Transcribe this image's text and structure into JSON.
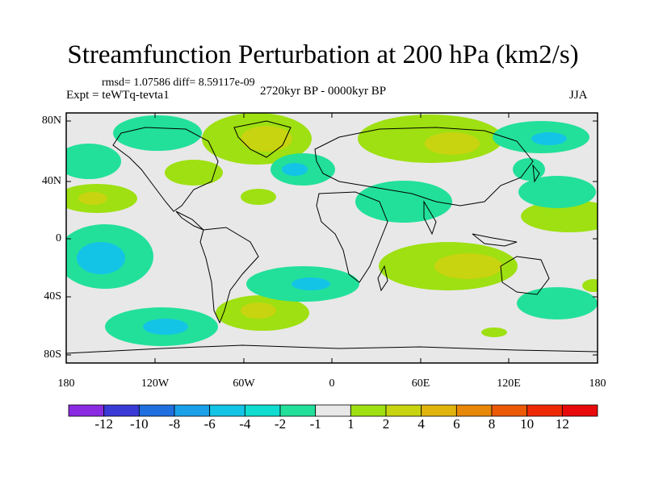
{
  "title": "Streamfunction Perturbation at 200 hPa (km2/s)",
  "stats": "rmsd= 1.07586 diff= 8.59117e-09",
  "experiment": "Expt = teWTq-tevta1",
  "period": "2720kyr BP - 0000kyr BP",
  "season": "JJA",
  "lat_labels": [
    "80N",
    "40N",
    "0",
    "40S",
    "80S"
  ],
  "lon_labels": [
    "180",
    "120W",
    "60W",
    "0",
    "60E",
    "120E",
    "180"
  ],
  "colorbar": {
    "labels": [
      "-12",
      "-10",
      "-8",
      "-6",
      "-4",
      "-2",
      "-1",
      "1",
      "2",
      "4",
      "6",
      "8",
      "10",
      "12"
    ],
    "colors": [
      "#8a2be2",
      "#3a3ad6",
      "#1f6fe0",
      "#1aa0e8",
      "#14c4e6",
      "#10dcd0",
      "#22e09a",
      "#e8e8e8",
      "#9ee011",
      "#c8d410",
      "#e0b40c",
      "#e88808",
      "#ec5a06",
      "#ee2a04",
      "#e80a0a"
    ]
  },
  "palette": {
    "neutral": "#e8e8e8",
    "neg1": "#22e09a",
    "neg2": "#14c4e6",
    "pos1": "#9ee011",
    "pos2": "#c8d410",
    "coast": "#000000"
  }
}
